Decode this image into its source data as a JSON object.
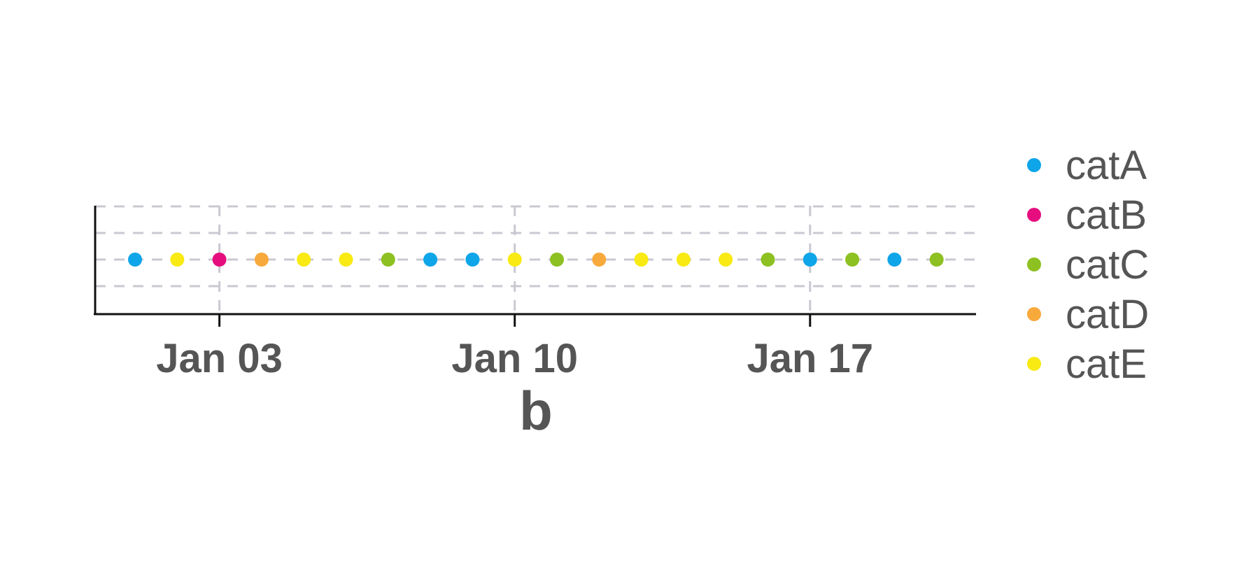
{
  "chart_data": {
    "type": "scatter",
    "xlabel": "b",
    "ylabel": "",
    "x_ticks": [
      "Jan 03",
      "Jan 10",
      "Jan 17"
    ],
    "xlim": [
      "2000-01-01",
      "2000-01-21"
    ],
    "grid": true,
    "legend_position": "right",
    "colors": {
      "catA": "#0ea5e9",
      "catB": "#e60e7f",
      "catC": "#8dc021",
      "catD": "#f8a93c",
      "catE": "#f8ea12"
    },
    "series": [
      {
        "name": "catA",
        "x": [
          "2000-01-01",
          "2000-01-08",
          "2000-01-09",
          "2000-01-17",
          "2000-01-19"
        ],
        "y": [
          0,
          0,
          0,
          0,
          0
        ]
      },
      {
        "name": "catB",
        "x": [
          "2000-01-03"
        ],
        "y": [
          0
        ]
      },
      {
        "name": "catC",
        "x": [
          "2000-01-07",
          "2000-01-11",
          "2000-01-16",
          "2000-01-18",
          "2000-01-20"
        ],
        "y": [
          0,
          0,
          0,
          0,
          0
        ]
      },
      {
        "name": "catD",
        "x": [
          "2000-01-04",
          "2000-01-12"
        ],
        "y": [
          0,
          0
        ]
      },
      {
        "name": "catE",
        "x": [
          "2000-01-02",
          "2000-01-05",
          "2000-01-06",
          "2000-01-10",
          "2000-01-13",
          "2000-01-14",
          "2000-01-15"
        ],
        "y": [
          0,
          0,
          0,
          0,
          0,
          0,
          0
        ]
      }
    ]
  }
}
